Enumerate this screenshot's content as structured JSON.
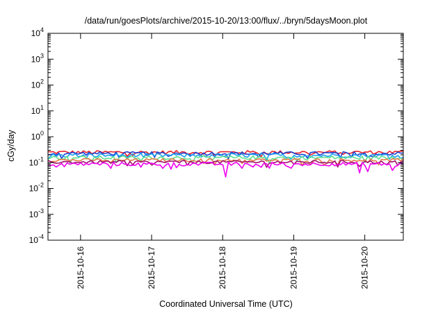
{
  "chart_data": {
    "type": "line",
    "title": "/data/run/goesPlots/archive/2015-10-20/13:00/flux/../bryn/5daysMoon.plot",
    "xlabel": "Coordinated Universal Time (UTC)",
    "ylabel": "cGy/day",
    "y_scale": "log",
    "ylim": [
      0.0001,
      10000
    ],
    "y_ticks": [
      {
        "base": "10",
        "exp": "-4",
        "value": 0.0001
      },
      {
        "base": "10",
        "exp": "-3",
        "value": 0.001
      },
      {
        "base": "10",
        "exp": "-2",
        "value": 0.01
      },
      {
        "base": "10",
        "exp": "-1",
        "value": 0.1
      },
      {
        "base": "10",
        "exp": "0",
        "value": 1
      },
      {
        "base": "10",
        "exp": "1",
        "value": 10
      },
      {
        "base": "10",
        "exp": "2",
        "value": 100
      },
      {
        "base": "10",
        "exp": "3",
        "value": 1000
      },
      {
        "base": "10",
        "exp": "4",
        "value": 10000
      }
    ],
    "xlim": [
      "2015-10-15T13:00",
      "2015-10-20T13:00"
    ],
    "x_ticks": [
      "2015-10-16",
      "2015-10-17",
      "2015-10-18",
      "2015-10-19",
      "2015-10-20"
    ],
    "grid": false,
    "legend": "none",
    "series": [
      {
        "color": "#e8202a",
        "level": 0.25,
        "spread": 0.07
      },
      {
        "color": "#1f3fd1",
        "level": 0.225,
        "spread": 0.07
      },
      {
        "color": "#1aa0ee",
        "level": 0.19,
        "spread": 0.08
      },
      {
        "color": "#5fe08e",
        "level": 0.155,
        "spread": 0.07
      },
      {
        "color": "#e07a48",
        "level": 0.125,
        "spread": 0.06
      },
      {
        "color": "#a0106e",
        "level": 0.105,
        "spread": 0.06
      },
      {
        "color": "#f000f0",
        "level": 0.088,
        "spread": 0.07,
        "dips": [
          {
            "t": "2015-10-18T01:00",
            "value": 0.028
          },
          {
            "t": "2015-10-19T22:30",
            "value": 0.04
          },
          {
            "t": "2015-10-20T01:00",
            "value": 0.045
          },
          {
            "t": "2015-10-20T09:30",
            "value": 0.05
          }
        ]
      }
    ]
  }
}
